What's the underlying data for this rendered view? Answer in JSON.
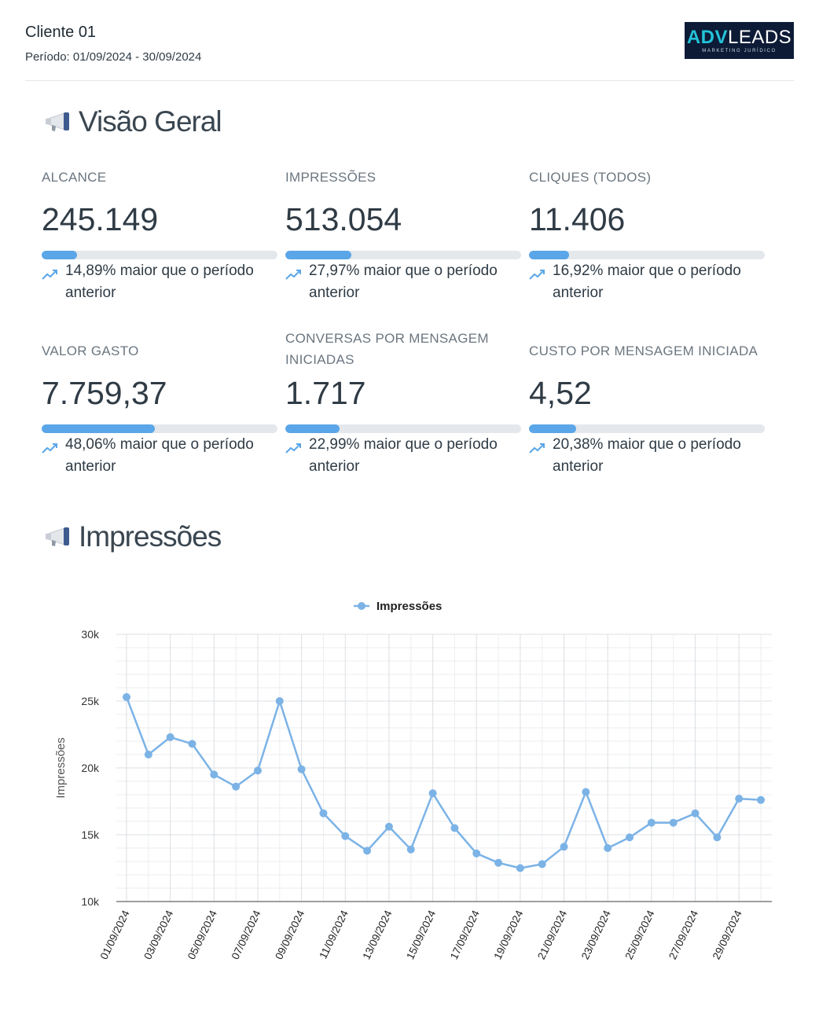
{
  "header": {
    "client": "Cliente 01",
    "period": "Período: 01/09/2024 - 30/09/2024",
    "logo": {
      "main_a": "ADV",
      "main_b": "LEADS",
      "sub": "MARKETING JURÍDICO"
    }
  },
  "overview": {
    "title": "Visão Geral",
    "icon": "megaphone-icon",
    "kpis": [
      {
        "label": "ALCANCE",
        "value": "245.149",
        "change": "14,89% maior que o período anterior",
        "progress": 0.15
      },
      {
        "label": "IMPRESSÕES",
        "value": "513.054",
        "change": "27,97% maior que o período anterior",
        "progress": 0.28
      },
      {
        "label": "CLIQUES (TODOS)",
        "value": "11.406",
        "change": "16,92% maior que o período anterior",
        "progress": 0.17
      },
      {
        "label": "VALOR GASTO",
        "value": "7.759,37",
        "change": "48,06% maior que o período anterior",
        "progress": 0.48
      },
      {
        "label": "CONVERSAS POR MENSAGEM INICIADAS",
        "value": "1.717",
        "change": "22,99% maior que o período anterior",
        "progress": 0.23
      },
      {
        "label": "CUSTO POR MENSAGEM INICIADA",
        "value": "4,52",
        "change": "20,38% maior que o período anterior",
        "progress": 0.2
      }
    ]
  },
  "impressions_section": {
    "title": "Impressões",
    "icon": "megaphone-icon"
  },
  "colors": {
    "accent": "#5aa6e8",
    "series": "#7cb3e6",
    "bar_track": "#e4e8ec",
    "logo_bg": "#0d1b36",
    "logo_accent": "#24c2d8"
  },
  "chart_data": {
    "type": "line",
    "title": "",
    "xlabel": "",
    "ylabel": "Impressões",
    "ylim": [
      10000,
      30000
    ],
    "y_ticks": [
      "10k",
      "15k",
      "20k",
      "25k",
      "30k"
    ],
    "legend": "top-center",
    "grid": true,
    "series": [
      {
        "name": "Impressões",
        "x": [
          "01/09/2024",
          "02/09/2024",
          "03/09/2024",
          "04/09/2024",
          "05/09/2024",
          "06/09/2024",
          "07/09/2024",
          "08/09/2024",
          "09/09/2024",
          "10/09/2024",
          "11/09/2024",
          "12/09/2024",
          "13/09/2024",
          "14/09/2024",
          "15/09/2024",
          "16/09/2024",
          "17/09/2024",
          "18/09/2024",
          "19/09/2024",
          "20/09/2024",
          "21/09/2024",
          "22/09/2024",
          "23/09/2024",
          "24/09/2024",
          "25/09/2024",
          "26/09/2024",
          "27/09/2024",
          "28/09/2024",
          "29/09/2024",
          "30/09/2024"
        ],
        "values": [
          25300,
          21000,
          22300,
          21800,
          19500,
          18600,
          19800,
          25000,
          19900,
          16600,
          14900,
          13800,
          15600,
          13900,
          18100,
          15500,
          13600,
          12900,
          12500,
          12800,
          14100,
          18200,
          14000,
          14800,
          15900,
          15900,
          16600,
          14800,
          17700,
          17600
        ]
      }
    ],
    "x_tick_labels": [
      "01/09/2024",
      "03/09/2024",
      "05/09/2024",
      "07/09/2024",
      "09/09/2024",
      "11/09/2024",
      "13/09/2024",
      "15/09/2024",
      "17/09/2024",
      "19/09/2024",
      "21/09/2024",
      "23/09/2024",
      "25/09/2024",
      "27/09/2024",
      "29/09/2024"
    ]
  }
}
